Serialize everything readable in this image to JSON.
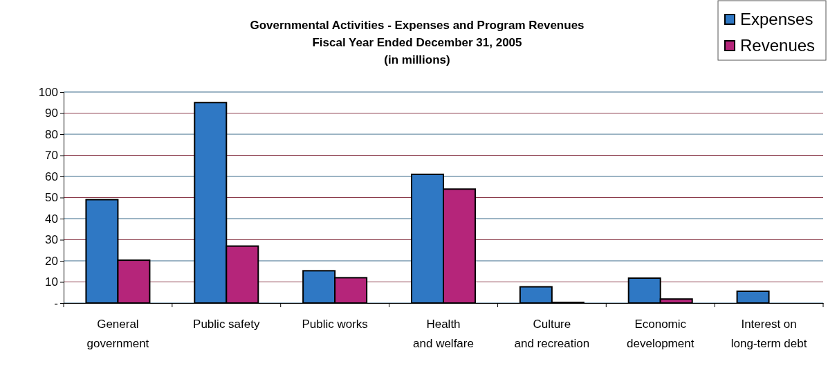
{
  "chart_data": {
    "type": "bar",
    "title": "Governmental Activities - Expenses and Program Revenues",
    "subtitle": "Fiscal Year Ended December 31, 2005\n(in millions)",
    "categories": [
      "General government",
      "Public safety",
      "Public works",
      "Health and welfare",
      "Culture and recreation",
      "Economic development",
      "Interest on long-term debt"
    ],
    "series": [
      {
        "name": "Expenses",
        "color": "#2f78c4",
        "values": [
          49,
          95,
          15.3,
          61,
          7.7,
          11.8,
          5.6
        ]
      },
      {
        "name": "Revenues",
        "color": "#b5257a",
        "values": [
          20.3,
          27,
          12,
          54,
          0.3,
          1.9,
          0
        ]
      }
    ],
    "ylim": [
      0,
      100
    ],
    "yticks": [
      {
        "value": 0,
        "label": "-"
      },
      10,
      20,
      30,
      40,
      50,
      60,
      70,
      80,
      90,
      100
    ],
    "grid": "y",
    "legend": "top right"
  }
}
